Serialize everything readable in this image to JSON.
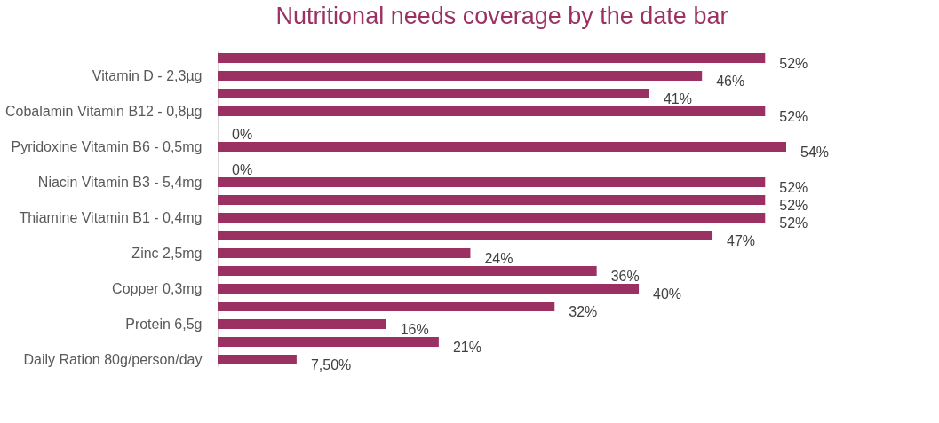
{
  "chart_data": {
    "type": "bar",
    "orientation": "horizontal",
    "title": "Nutritional needs coverage by the date bar",
    "categories": [
      null,
      "Vitamin D - 2,3µg",
      null,
      "Cobalamin Vitamin B12 - 0,8µg",
      null,
      "Pyridoxine Vitamin B6 - 0,5mg",
      null,
      "Niacin Vitamin B3 - 5,4mg",
      null,
      "Thiamine Vitamin B1 - 0,4mg",
      null,
      "Zinc 2,5mg",
      null,
      "Copper 0,3mg",
      null,
      "Protein 6,5g",
      null,
      "Daily Ration 80g/person/day"
    ],
    "values": [
      52,
      46,
      41,
      52,
      0,
      54,
      0,
      52,
      52,
      52,
      47,
      24,
      36,
      40,
      32,
      16,
      21,
      7.5
    ],
    "value_labels": [
      "52%",
      "46%",
      "41%",
      "52%",
      "0%",
      "54%",
      "0%",
      "52%",
      "52%",
      "52%",
      "47%",
      "24%",
      "36%",
      "40%",
      "32%",
      "16%",
      "21%",
      "7,50%"
    ],
    "color": "#9b3163",
    "tick_labels": "y"
  }
}
